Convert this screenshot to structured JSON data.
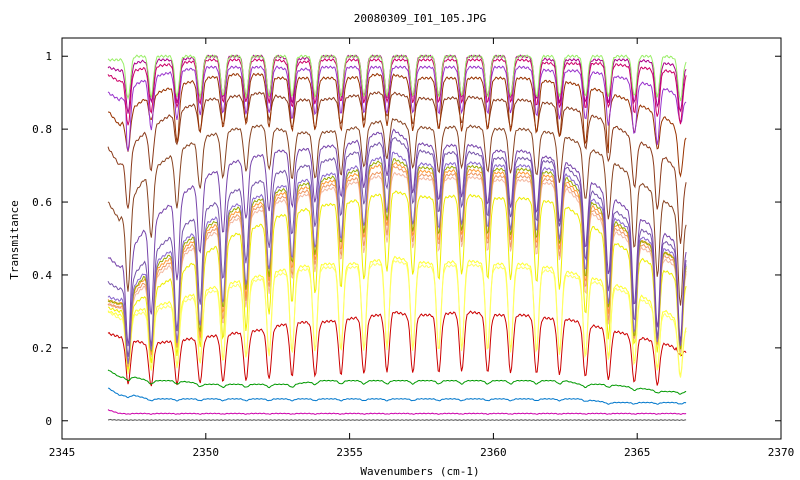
{
  "chart_data": {
    "type": "line",
    "title": "20080309_I01_105.JPG",
    "xlabel": "Wavenumbers (cm-1)",
    "ylabel": "Transmitance",
    "xlim": [
      2345,
      2370
    ],
    "ylim": [
      -0.05,
      1.05
    ],
    "x_ticks": [
      2345,
      2350,
      2355,
      2360,
      2365,
      2370
    ],
    "x_tick_labels": [
      "2345",
      "2350",
      "2355",
      "2360",
      "2365",
      "2370"
    ],
    "y_ticks": [
      0,
      0.2,
      0.4,
      0.6,
      0.8,
      1
    ],
    "y_tick_labels": [
      "0",
      "0.2",
      "0.4",
      "0.6",
      "0.8",
      "1"
    ],
    "grid": false,
    "legend": "none",
    "x": [
      2346.6,
      2347.0,
      2347.5,
      2348.0,
      2349.0,
      2350.0,
      2351.0,
      2352.0,
      2352.5,
      2353.0,
      2354.0,
      2355.0,
      2356.0,
      2356.5,
      2357.0,
      2358.0,
      2359.0,
      2360.0,
      2361.0,
      2362.0,
      2362.5,
      2363.0,
      2364.0,
      2365.0,
      2366.0,
      2366.7
    ],
    "series": [
      {
        "color": "#cc0000",
        "values": [
          0.24,
          0.23,
          0.22,
          0.21,
          0.22,
          0.23,
          0.24,
          0.25,
          0.26,
          0.27,
          0.27,
          0.28,
          0.29,
          0.3,
          0.29,
          0.29,
          0.3,
          0.29,
          0.29,
          0.28,
          0.28,
          0.27,
          0.25,
          0.23,
          0.21,
          0.19
        ]
      },
      {
        "color": "#ffff33",
        "values": [
          0.3,
          0.29,
          0.3,
          0.31,
          0.33,
          0.36,
          0.38,
          0.4,
          0.41,
          0.42,
          0.43,
          0.43,
          0.44,
          0.45,
          0.44,
          0.43,
          0.44,
          0.43,
          0.43,
          0.42,
          0.41,
          0.4,
          0.38,
          0.35,
          0.3,
          0.26
        ]
      },
      {
        "color": "#ffff66",
        "values": [
          0.3,
          0.28,
          0.29,
          0.3,
          0.32,
          0.35,
          0.37,
          0.39,
          0.4,
          0.41,
          0.42,
          0.42,
          0.43,
          0.44,
          0.43,
          0.42,
          0.43,
          0.42,
          0.42,
          0.41,
          0.4,
          0.39,
          0.37,
          0.34,
          0.29,
          0.25
        ]
      },
      {
        "color": "#eeee00",
        "values": [
          0.31,
          0.3,
          0.32,
          0.35,
          0.4,
          0.46,
          0.51,
          0.54,
          0.56,
          0.57,
          0.59,
          0.6,
          0.62,
          0.63,
          0.62,
          0.61,
          0.62,
          0.61,
          0.61,
          0.6,
          0.59,
          0.56,
          0.5,
          0.45,
          0.41,
          0.38
        ]
      },
      {
        "color": "#f4b8a0",
        "values": [
          0.32,
          0.31,
          0.34,
          0.38,
          0.44,
          0.5,
          0.55,
          0.58,
          0.6,
          0.61,
          0.63,
          0.65,
          0.67,
          0.68,
          0.67,
          0.66,
          0.67,
          0.66,
          0.66,
          0.65,
          0.64,
          0.6,
          0.53,
          0.48,
          0.44,
          0.41
        ]
      },
      {
        "color": "#ee9966",
        "values": [
          0.32,
          0.31,
          0.35,
          0.39,
          0.45,
          0.51,
          0.56,
          0.59,
          0.61,
          0.62,
          0.64,
          0.66,
          0.68,
          0.7,
          0.68,
          0.67,
          0.68,
          0.67,
          0.67,
          0.66,
          0.65,
          0.61,
          0.54,
          0.49,
          0.45,
          0.42
        ]
      },
      {
        "color": "#ff9933",
        "values": [
          0.33,
          0.32,
          0.36,
          0.4,
          0.46,
          0.52,
          0.57,
          0.6,
          0.62,
          0.63,
          0.65,
          0.67,
          0.7,
          0.71,
          0.69,
          0.68,
          0.69,
          0.68,
          0.68,
          0.67,
          0.66,
          0.62,
          0.55,
          0.5,
          0.46,
          0.43
        ]
      },
      {
        "color": "#99aa00",
        "values": [
          0.33,
          0.32,
          0.36,
          0.41,
          0.47,
          0.53,
          0.58,
          0.61,
          0.63,
          0.64,
          0.66,
          0.68,
          0.71,
          0.72,
          0.7,
          0.69,
          0.7,
          0.69,
          0.69,
          0.68,
          0.67,
          0.63,
          0.56,
          0.5,
          0.46,
          0.43
        ]
      },
      {
        "color": "#8866cc",
        "values": [
          0.34,
          0.33,
          0.37,
          0.42,
          0.48,
          0.54,
          0.59,
          0.62,
          0.64,
          0.65,
          0.67,
          0.69,
          0.72,
          0.74,
          0.71,
          0.7,
          0.71,
          0.7,
          0.7,
          0.69,
          0.68,
          0.64,
          0.57,
          0.51,
          0.47,
          0.44
        ]
      },
      {
        "color": "#7755aa",
        "values": [
          0.38,
          0.36,
          0.4,
          0.45,
          0.52,
          0.58,
          0.63,
          0.66,
          0.68,
          0.69,
          0.71,
          0.73,
          0.76,
          0.78,
          0.75,
          0.73,
          0.74,
          0.72,
          0.72,
          0.71,
          0.7,
          0.66,
          0.59,
          0.53,
          0.49,
          0.45
        ]
      },
      {
        "color": "#7744aa",
        "values": [
          0.45,
          0.42,
          0.48,
          0.54,
          0.61,
          0.67,
          0.71,
          0.73,
          0.74,
          0.74,
          0.75,
          0.76,
          0.79,
          0.8,
          0.77,
          0.75,
          0.76,
          0.74,
          0.74,
          0.72,
          0.71,
          0.68,
          0.62,
          0.56,
          0.51,
          0.47
        ]
      },
      {
        "color": "#884422",
        "values": [
          0.6,
          0.55,
          0.62,
          0.68,
          0.74,
          0.78,
          0.8,
          0.81,
          0.8,
          0.79,
          0.79,
          0.8,
          0.82,
          0.83,
          0.81,
          0.8,
          0.81,
          0.8,
          0.8,
          0.79,
          0.78,
          0.76,
          0.72,
          0.66,
          0.6,
          0.55
        ]
      },
      {
        "color": "#8b3a1a",
        "values": [
          0.75,
          0.7,
          0.76,
          0.8,
          0.85,
          0.88,
          0.89,
          0.9,
          0.89,
          0.88,
          0.88,
          0.89,
          0.9,
          0.9,
          0.89,
          0.88,
          0.89,
          0.88,
          0.88,
          0.87,
          0.86,
          0.85,
          0.82,
          0.77,
          0.72,
          0.66
        ]
      },
      {
        "color": "#993300",
        "values": [
          0.85,
          0.81,
          0.86,
          0.89,
          0.92,
          0.94,
          0.95,
          0.95,
          0.94,
          0.94,
          0.94,
          0.94,
          0.95,
          0.95,
          0.94,
          0.94,
          0.94,
          0.94,
          0.94,
          0.93,
          0.93,
          0.92,
          0.9,
          0.87,
          0.83,
          0.78
        ]
      },
      {
        "color": "#9933cc",
        "values": [
          0.9,
          0.88,
          0.92,
          0.94,
          0.96,
          0.97,
          0.97,
          0.97,
          0.97,
          0.96,
          0.97,
          0.97,
          0.97,
          0.97,
          0.97,
          0.97,
          0.97,
          0.97,
          0.97,
          0.96,
          0.96,
          0.96,
          0.95,
          0.93,
          0.91,
          0.88
        ]
      },
      {
        "color": "#cc0066",
        "values": [
          0.95,
          0.93,
          0.96,
          0.97,
          0.98,
          0.99,
          0.99,
          0.99,
          0.99,
          0.98,
          0.99,
          0.99,
          0.99,
          0.99,
          0.99,
          0.99,
          0.99,
          0.99,
          0.99,
          0.98,
          0.98,
          0.98,
          0.98,
          0.97,
          0.96,
          0.95
        ]
      },
      {
        "color": "#aa0088",
        "values": [
          0.97,
          0.96,
          0.98,
          0.99,
          0.99,
          1.0,
          1.0,
          1.0,
          1.0,
          0.99,
          1.0,
          1.0,
          1.0,
          1.0,
          1.0,
          1.0,
          1.0,
          1.0,
          1.0,
          0.99,
          0.99,
          0.99,
          0.99,
          0.99,
          0.98,
          0.97
        ]
      },
      {
        "color": "#99ee66",
        "values": [
          0.99,
          0.99,
          1.0,
          1.0,
          1.0,
          1.0,
          1.0,
          1.0,
          1.0,
          1.0,
          1.0,
          1.0,
          1.0,
          1.0,
          1.0,
          1.0,
          1.0,
          1.0,
          1.0,
          1.0,
          1.0,
          1.0,
          1.0,
          1.0,
          1.0,
          0.99
        ]
      },
      {
        "color": "#009900",
        "values": [
          0.14,
          0.12,
          0.12,
          0.11,
          0.11,
          0.1,
          0.1,
          0.1,
          0.1,
          0.1,
          0.11,
          0.11,
          0.11,
          0.11,
          0.11,
          0.11,
          0.11,
          0.11,
          0.11,
          0.11,
          0.11,
          0.1,
          0.1,
          0.09,
          0.08,
          0.08
        ]
      },
      {
        "color": "#0077cc",
        "values": [
          0.09,
          0.07,
          0.07,
          0.06,
          0.06,
          0.06,
          0.06,
          0.06,
          0.06,
          0.06,
          0.06,
          0.06,
          0.06,
          0.06,
          0.06,
          0.06,
          0.06,
          0.06,
          0.06,
          0.06,
          0.06,
          0.06,
          0.05,
          0.05,
          0.05,
          0.05
        ]
      },
      {
        "color": "#cc00aa",
        "values": [
          0.03,
          0.02,
          0.02,
          0.02,
          0.02,
          0.02,
          0.02,
          0.02,
          0.02,
          0.02,
          0.02,
          0.02,
          0.02,
          0.02,
          0.02,
          0.02,
          0.02,
          0.02,
          0.02,
          0.02,
          0.02,
          0.02,
          0.02,
          0.02,
          0.02,
          0.02
        ]
      },
      {
        "color": "#555555",
        "values": [
          0.003,
          0.002,
          0.002,
          0.002,
          0.002,
          0.002,
          0.002,
          0.002,
          0.002,
          0.002,
          0.002,
          0.002,
          0.002,
          0.002,
          0.002,
          0.002,
          0.002,
          0.002,
          0.002,
          0.002,
          0.002,
          0.002,
          0.002,
          0.002,
          0.002,
          0.002
        ]
      }
    ],
    "absorption_dip_centers": [
      2347.3,
      2348.1,
      2349.0,
      2349.8,
      2350.6,
      2351.4,
      2352.2,
      2353.0,
      2353.8,
      2354.7,
      2355.5,
      2356.3,
      2357.2,
      2358.1,
      2358.9,
      2359.8,
      2360.6,
      2361.5,
      2362.3,
      2363.2,
      2364.0,
      2364.9,
      2365.7,
      2366.5
    ]
  }
}
